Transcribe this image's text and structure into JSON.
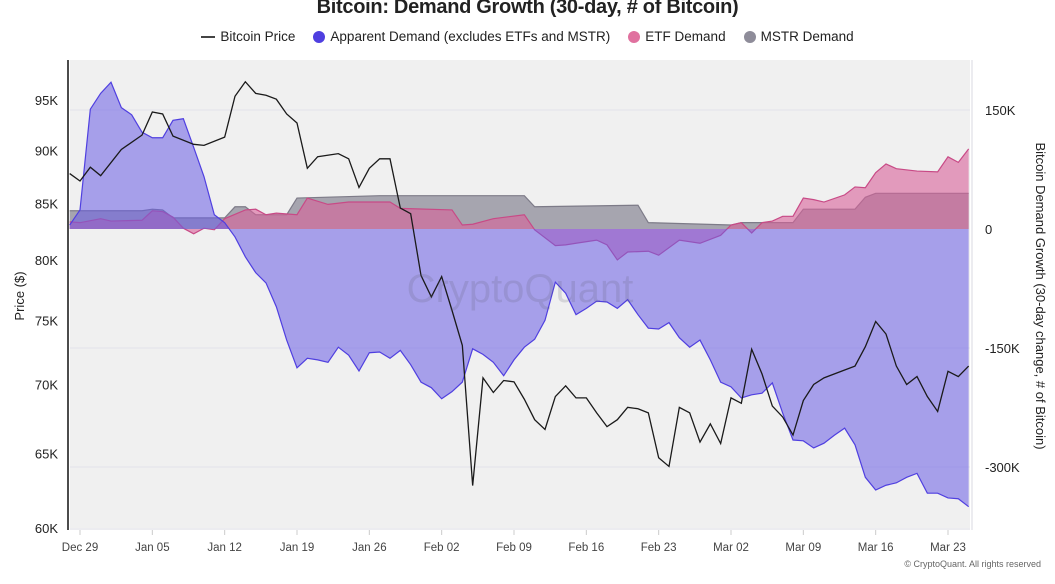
{
  "chart_data": {
    "type": "line+area",
    "title": "Bitcoin: Demand Growth (30-day, # of Bitcoin)",
    "ylabel_left": "Price ($)",
    "ylabel_right": "Bitcoin Demand Growth (30-day change, # of Bitcoin)",
    "left_axis": {
      "scale": "log",
      "range": [
        60000,
        99000
      ],
      "ticks": [
        60000,
        65000,
        70000,
        75000,
        80000,
        85000,
        90000,
        95000
      ],
      "tick_labels": [
        "60K",
        "65K",
        "70K",
        "75K",
        "80K",
        "85K",
        "90K",
        "95K"
      ]
    },
    "right_axis": {
      "scale": "linear",
      "range": [
        -375000,
        210000
      ],
      "ticks": [
        150000,
        0,
        -150000,
        -300000
      ],
      "tick_labels": [
        "150K",
        "0",
        "-150K",
        "-300K"
      ]
    },
    "x_ticks": [
      "Dec 29",
      "Jan 05",
      "Jan 12",
      "Jan 19",
      "Jan 26",
      "Feb 02",
      "Feb 09",
      "Feb 16",
      "Feb 23",
      "Mar 02",
      "Mar 09",
      "Mar 16",
      "Mar 23"
    ],
    "grid": "horizontal",
    "legend_position": "top",
    "watermark": "CryptoQuant",
    "colors": {
      "price": "#1a1a1a",
      "apparent": "#4f3fe0",
      "etf": "#e0719f",
      "mstr": "#8e8c99"
    },
    "series": [
      {
        "name": "Bitcoin Price",
        "axis": "left",
        "kind": "line",
        "x": [
          "Dec 28",
          "Dec 29",
          "Dec 30",
          "Dec 31",
          "Jan 02",
          "Jan 04",
          "Jan 05",
          "Jan 06",
          "Jan 07",
          "Jan 09",
          "Jan 10",
          "Jan 12",
          "Jan 13",
          "Jan 14",
          "Jan 15",
          "Jan 16",
          "Jan 17",
          "Jan 18",
          "Jan 19",
          "Jan 20",
          "Jan 21",
          "Jan 23",
          "Jan 24",
          "Jan 25",
          "Jan 26",
          "Jan 27",
          "Jan 28",
          "Jan 29",
          "Jan 30",
          "Jan 31",
          "Feb 01",
          "Feb 02",
          "Feb 03",
          "Feb 04",
          "Feb 05",
          "Feb 06",
          "Feb 07",
          "Feb 08",
          "Feb 09",
          "Feb 10",
          "Feb 11",
          "Feb 12",
          "Feb 13",
          "Feb 14",
          "Feb 15",
          "Feb 16",
          "Feb 17",
          "Feb 18",
          "Feb 19",
          "Feb 20",
          "Feb 21",
          "Feb 22",
          "Feb 23",
          "Feb 24",
          "Feb 25",
          "Feb 26",
          "Feb 27",
          "Feb 28",
          "Mar 01",
          "Mar 02",
          "Mar 03",
          "Mar 04",
          "Mar 05",
          "Mar 06",
          "Mar 07",
          "Mar 08",
          "Mar 09",
          "Mar 10",
          "Mar 11",
          "Mar 13",
          "Mar 14",
          "Mar 15",
          "Mar 16",
          "Mar 17",
          "Mar 18",
          "Mar 19",
          "Mar 20",
          "Mar 21",
          "Mar 22",
          "Mar 23",
          "Mar 24",
          "Mar 25"
        ],
        "values": [
          87800,
          87100,
          88400,
          87600,
          90100,
          91500,
          93800,
          93600,
          91400,
          90600,
          90500,
          91300,
          95400,
          96900,
          95700,
          95500,
          95100,
          93600,
          92700,
          88300,
          89400,
          89700,
          89200,
          86500,
          88300,
          89200,
          89200,
          84600,
          84100,
          78700,
          76900,
          78600,
          75800,
          73000,
          62800,
          70500,
          69400,
          70300,
          70200,
          68900,
          67400,
          66700,
          69100,
          69900,
          69000,
          69000,
          67900,
          66900,
          67400,
          68300,
          68200,
          67900,
          64700,
          64100,
          68300,
          67900,
          65800,
          67100,
          65700,
          69000,
          68600,
          72700,
          70800,
          68400,
          67600,
          66300,
          68800,
          70000,
          70500,
          71100,
          71400,
          72900,
          74900,
          73900,
          71400,
          70000,
          70600,
          69100,
          68000,
          71000,
          70600,
          71400
        ]
      },
      {
        "name": "Apparent Demand (excludes ETFs and MSTR)",
        "axis": "right",
        "kind": "area",
        "x": [
          "Dec 28",
          "Dec 29",
          "Dec 30",
          "Dec 31",
          "Jan 01",
          "Jan 02",
          "Jan 03",
          "Jan 04",
          "Jan 05",
          "Jan 06",
          "Jan 07",
          "Jan 08",
          "Jan 09",
          "Jan 10",
          "Jan 11",
          "Jan 12",
          "Jan 13",
          "Jan 14",
          "Jan 15",
          "Jan 16",
          "Jan 17",
          "Jan 18",
          "Jan 19",
          "Jan 20",
          "Jan 21",
          "Jan 22",
          "Jan 23",
          "Jan 24",
          "Jan 25",
          "Jan 26",
          "Jan 27",
          "Jan 28",
          "Jan 29",
          "Jan 30",
          "Jan 31",
          "Feb 01",
          "Feb 02",
          "Feb 03",
          "Feb 04",
          "Feb 05",
          "Feb 06",
          "Feb 07",
          "Feb 08",
          "Feb 09",
          "Feb 10",
          "Feb 11",
          "Feb 12",
          "Feb 13",
          "Feb 14",
          "Feb 15",
          "Feb 16",
          "Feb 17",
          "Feb 18",
          "Feb 19",
          "Feb 20",
          "Feb 21",
          "Feb 22",
          "Feb 23",
          "Feb 24",
          "Feb 25",
          "Feb 26",
          "Feb 27",
          "Feb 28",
          "Mar 01",
          "Mar 02",
          "Mar 03",
          "Mar 04",
          "Mar 05",
          "Mar 06",
          "Mar 07",
          "Mar 08",
          "Mar 09",
          "Mar 10",
          "Mar 11",
          "Mar 12",
          "Mar 13",
          "Mar 14",
          "Mar 15",
          "Mar 16",
          "Mar 17",
          "Mar 18",
          "Mar 19",
          "Mar 20",
          "Mar 21",
          "Mar 22",
          "Mar 23",
          "Mar 24",
          "Mar 25"
        ],
        "values": [
          5000,
          24000,
          151000,
          171000,
          185000,
          153000,
          144000,
          122000,
          115000,
          115000,
          137000,
          139000,
          103000,
          66000,
          18000,
          8000,
          -10000,
          -35000,
          -55000,
          -68000,
          -98000,
          -140000,
          -175000,
          -163000,
          -165000,
          -168000,
          -149000,
          -159000,
          -179000,
          -156000,
          -155000,
          -163000,
          -153000,
          -171000,
          -193000,
          -200000,
          -214000,
          -205000,
          -193000,
          -151000,
          -158000,
          -168000,
          -185000,
          -165000,
          -149000,
          -139000,
          -115000,
          -67000,
          -81000,
          -108000,
          -100000,
          -91000,
          -92000,
          -100000,
          -89000,
          -108000,
          -125000,
          -126000,
          -118000,
          -137000,
          -149000,
          -140000,
          -165000,
          -193000,
          -199000,
          -213000,
          -209000,
          -207000,
          -194000,
          -232000,
          -266000,
          -267000,
          -276000,
          -270000,
          -260000,
          -251000,
          -272000,
          -313000,
          -329000,
          -323000,
          -320000,
          -313000,
          -308000,
          -333000,
          -333000,
          -339000,
          -340000,
          -350000
        ]
      },
      {
        "name": "ETF Demand",
        "axis": "right",
        "kind": "area",
        "x": [
          "Dec 28",
          "Dec 29",
          "Dec 31",
          "Jan 01",
          "Jan 04",
          "Jan 05",
          "Jan 06",
          "Jan 07",
          "Jan 08",
          "Jan 09",
          "Jan 10",
          "Jan 11",
          "Jan 12",
          "Jan 14",
          "Jan 15",
          "Jan 16",
          "Jan 17",
          "Jan 19",
          "Jan 20",
          "Jan 22",
          "Jan 24",
          "Jan 27",
          "Jan 28",
          "Jan 29",
          "Feb 03",
          "Feb 04",
          "Feb 05",
          "Feb 07",
          "Feb 10",
          "Feb 11",
          "Feb 13",
          "Feb 14",
          "Feb 15",
          "Feb 17",
          "Feb 18",
          "Feb 19",
          "Feb 20",
          "Feb 22",
          "Feb 23",
          "Feb 25",
          "Feb 27",
          "Mar 01",
          "Mar 02",
          "Mar 03",
          "Mar 04",
          "Mar 05",
          "Mar 06",
          "Mar 07",
          "Mar 08",
          "Mar 09",
          "Mar 10",
          "Mar 11",
          "Mar 13",
          "Mar 14",
          "Mar 15",
          "Mar 16",
          "Mar 17",
          "Mar 18",
          "Mar 20",
          "Mar 22",
          "Mar 23",
          "Mar 24",
          "Mar 25"
        ],
        "values": [
          9000,
          8000,
          13000,
          10000,
          11000,
          23000,
          22000,
          15000,
          1000,
          -6000,
          1000,
          -1000,
          13000,
          24000,
          25000,
          18000,
          20000,
          18000,
          39000,
          31000,
          34000,
          34000,
          34000,
          26000,
          24000,
          5000,
          6000,
          13000,
          18000,
          -1000,
          -21000,
          -20000,
          -18000,
          -14000,
          -20000,
          -39000,
          -29000,
          -28000,
          -33000,
          -14000,
          -18000,
          -8000,
          5000,
          8000,
          -5000,
          8000,
          10000,
          16000,
          16000,
          39000,
          37000,
          34000,
          43000,
          53000,
          52000,
          71000,
          82000,
          76000,
          73000,
          72000,
          91000,
          84000,
          101000
        ]
      },
      {
        "name": "MSTR Demand",
        "axis": "right",
        "kind": "area",
        "x": [
          "Dec 28",
          "Jan 04",
          "Jan 05",
          "Jan 06",
          "Jan 07",
          "Jan 12",
          "Jan 13",
          "Jan 14",
          "Jan 15",
          "Jan 18",
          "Jan 19",
          "Jan 27",
          "Feb 10",
          "Feb 11",
          "Feb 21",
          "Feb 22",
          "Mar 02",
          "Mar 03",
          "Mar 08",
          "Mar 09",
          "Mar 14",
          "Mar 15",
          "Mar 16",
          "Mar 25"
        ],
        "values": [
          23000,
          23000,
          25000,
          24000,
          14000,
          14000,
          28000,
          28000,
          18000,
          18000,
          39000,
          42000,
          42000,
          28000,
          30000,
          8000,
          5000,
          8000,
          8000,
          25000,
          25000,
          40000,
          45000,
          45000
        ]
      }
    ]
  },
  "footer": {
    "copyright": "© CryptoQuant. All rights reserved"
  }
}
